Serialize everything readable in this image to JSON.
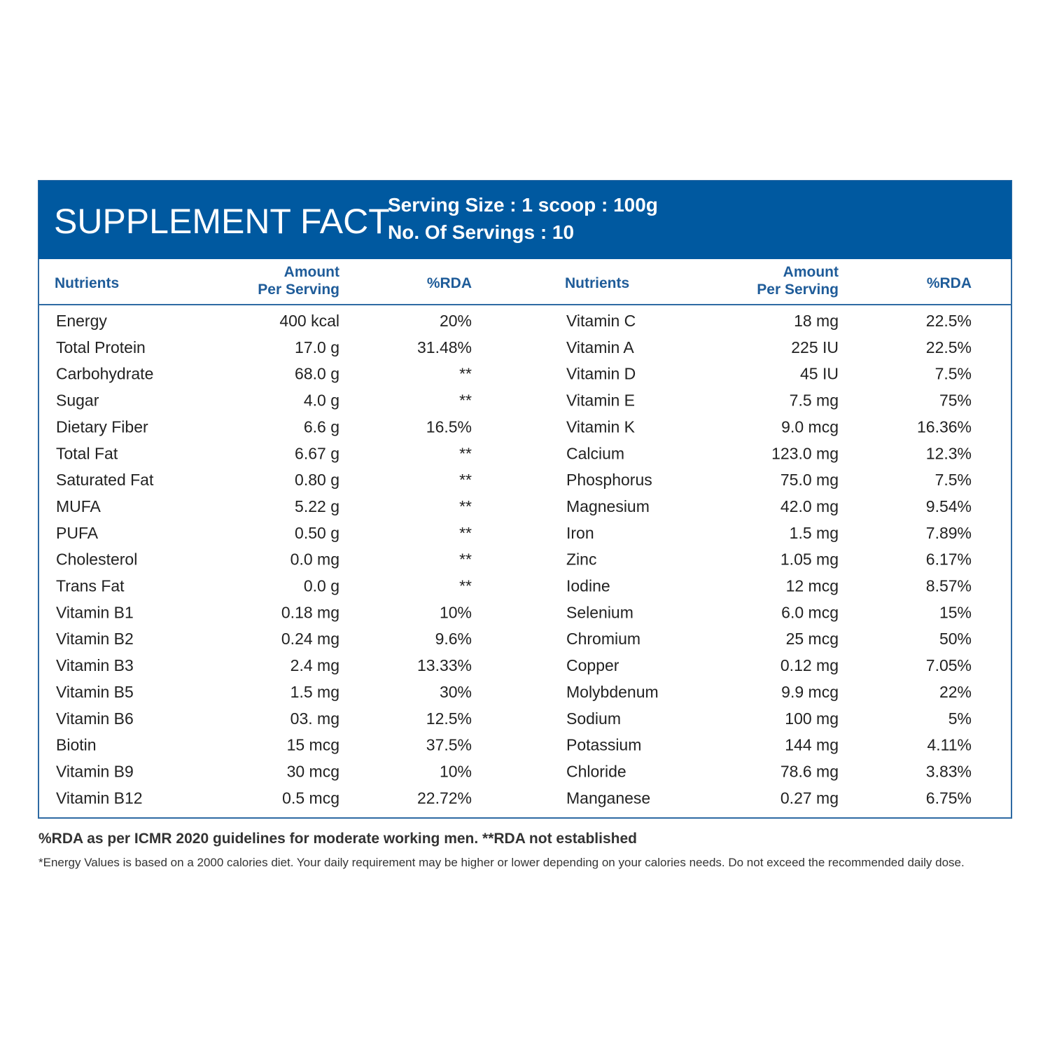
{
  "header": {
    "title": "SUPPLEMENT FACT",
    "serving_size": "Serving Size : 1 scoop : 100g",
    "servings": "No. Of Servings : 10"
  },
  "tables": [
    {
      "headers": [
        "Nutrients",
        [
          "Amount",
          "Per Serving"
        ],
        "%RDA"
      ],
      "rows": [
        [
          "Energy",
          "400 kcal",
          "20%"
        ],
        [
          "Total Protein",
          "17.0 g",
          "31.48%"
        ],
        [
          "Carbohydrate",
          "68.0 g",
          "**"
        ],
        [
          "Sugar",
          "4.0 g",
          "**"
        ],
        [
          "Dietary Fiber",
          "6.6 g",
          "16.5%"
        ],
        [
          "Total Fat",
          "6.67 g",
          "**"
        ],
        [
          "Saturated Fat",
          "0.80 g",
          "**"
        ],
        [
          "MUFA",
          "5.22 g",
          "**"
        ],
        [
          "PUFA",
          "0.50 g",
          "**"
        ],
        [
          "Cholesterol",
          "0.0 mg",
          "**"
        ],
        [
          "Trans Fat",
          "0.0 g",
          "**"
        ],
        [
          "Vitamin B1",
          "0.18 mg",
          "10%"
        ],
        [
          "Vitamin B2",
          "0.24 mg",
          "9.6%"
        ],
        [
          "Vitamin B3",
          "2.4 mg",
          "13.33%"
        ],
        [
          "Vitamin B5",
          "1.5 mg",
          "30%"
        ],
        [
          "Vitamin B6",
          "03. mg",
          "12.5%"
        ],
        [
          "Biotin",
          "15 mcg",
          "37.5%"
        ],
        [
          "Vitamin B9",
          "30 mcg",
          "10%"
        ],
        [
          "Vitamin B12",
          "0.5 mcg",
          "22.72%"
        ]
      ]
    },
    {
      "headers": [
        "Nutrients",
        [
          "Amount",
          "Per Serving"
        ],
        "%RDA"
      ],
      "rows": [
        [
          "Vitamin C",
          "18 mg",
          "22.5%"
        ],
        [
          "Vitamin A",
          "225 IU",
          "22.5%"
        ],
        [
          "Vitamin D",
          "45 IU",
          "7.5%"
        ],
        [
          "Vitamin E",
          "7.5 mg",
          "75%"
        ],
        [
          "Vitamin K",
          "9.0 mcg",
          "16.36%"
        ],
        [
          "Calcium",
          "123.0 mg",
          "12.3%"
        ],
        [
          "Phosphorus",
          "75.0 mg",
          "7.5%"
        ],
        [
          "Magnesium",
          "42.0 mg",
          "9.54%"
        ],
        [
          "Iron",
          "1.5 mg",
          "7.89%"
        ],
        [
          "Zinc",
          "1.05 mg",
          "6.17%"
        ],
        [
          "Iodine",
          "12 mcg",
          "8.57%"
        ],
        [
          "Selenium",
          "6.0 mcg",
          "15%"
        ],
        [
          "Chromium",
          "25 mcg",
          "50%"
        ],
        [
          "Copper",
          "0.12 mg",
          "7.05%"
        ],
        [
          "Molybdenum",
          "9.9 mcg",
          "22%"
        ],
        [
          "Sodium",
          "100 mg",
          "5%"
        ],
        [
          "Potassium",
          "144 mg",
          "4.11%"
        ],
        [
          "Chloride",
          "78.6 mg",
          "3.83%"
        ],
        [
          "Manganese",
          "0.27 mg",
          "6.75%"
        ]
      ]
    }
  ],
  "footnotes": [
    "%RDA as per ICMR 2020 guidelines for moderate working men. **RDA not established",
    "*Energy Values is based on a 2000 calories diet. Your daily requirement may be higher or lower depending on  your calories needs. Do not exceed the recommended daily dose."
  ]
}
